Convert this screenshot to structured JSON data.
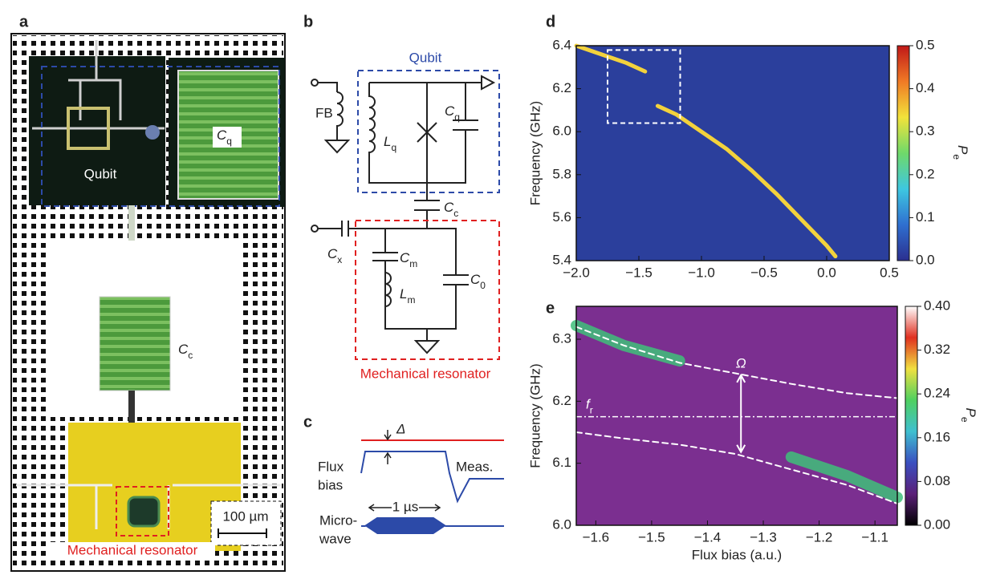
{
  "panels": {
    "a": {
      "label": "a",
      "qubit": "Qubit",
      "cq": {
        "main": "C",
        "sub": "q"
      },
      "cc": {
        "main": "C",
        "sub": "c"
      },
      "scale": "100 µm",
      "resonator": "Mechanical resonator"
    },
    "b": {
      "label": "b",
      "qubit": "Qubit",
      "fb": "FB",
      "lq": {
        "main": "L",
        "sub": "q"
      },
      "cq": {
        "main": "C",
        "sub": "q"
      },
      "cc": {
        "main": "C",
        "sub": "c"
      },
      "cx": {
        "main": "C",
        "sub": "x"
      },
      "cm": {
        "main": "C",
        "sub": "m"
      },
      "lm": {
        "main": "L",
        "sub": "m"
      },
      "c0": {
        "main": "C",
        "sub": "0"
      },
      "resonator": "Mechanical resonator"
    },
    "c": {
      "label": "c",
      "delta": "Δ",
      "flux": "Flux",
      "bias": "bias",
      "meas": "Meas.",
      "micro": "Micro-",
      "wave": "wave",
      "duration": "1 µs"
    }
  },
  "chart_data": [
    {
      "type": "heatmap",
      "label": "d",
      "ylabel": "Frequency (GHz)",
      "background": "#2b3f9c",
      "xlim": [
        -2.0,
        0.5
      ],
      "ylim": [
        5.4,
        6.4
      ],
      "xticks": [
        {
          "value": -2.0,
          "label": "−2.0"
        },
        {
          "value": -1.5,
          "label": "−1.5"
        },
        {
          "value": -1.0,
          "label": "−1.0"
        },
        {
          "value": -0.5,
          "label": "−0.5"
        },
        {
          "value": 0.0,
          "label": "0.0"
        },
        0.5
      ],
      "yticks": [
        5.4,
        5.6,
        5.8,
        {
          "value": 6.0,
          "label": "6.0"
        },
        6.2,
        6.4
      ],
      "x": [
        -2.0,
        -1.8,
        -1.6,
        -1.45,
        -1.4,
        -1.35,
        -1.2,
        -1.0,
        -0.8,
        -0.6,
        -0.4,
        -0.2,
        0.0,
        0.07
      ],
      "series": [
        {
          "color": "#f3d23c",
          "style": "solid",
          "values": [
            6.4,
            6.36,
            6.32,
            6.28,
            null,
            6.12,
            6.08,
            6.0,
            5.92,
            5.82,
            5.71,
            5.59,
            5.47,
            5.42
          ]
        }
      ],
      "highlight": {
        "x": [
          -1.75,
          -1.17
        ],
        "y": [
          6.04,
          6.38
        ]
      },
      "colorbar": {
        "label": {
          "main": "P",
          "sub": "e"
        },
        "lim": [
          0.0,
          0.5
        ],
        "ticks": [
          {
            "value": 0.0,
            "label": "0.0"
          },
          0.1,
          0.2,
          0.3,
          0.4,
          0.5
        ],
        "colors": [
          "#2b2f8f",
          "#2f6fd0",
          "#3ec7e0",
          "#6fd96a",
          "#f2e23a",
          "#f07a25",
          "#c01818"
        ]
      }
    },
    {
      "type": "heatmap",
      "label": "e",
      "ylabel": "Frequency (GHz)",
      "xlabel": "Flux bias (a.u.)",
      "background": "#7b2f90",
      "xlim": [
        -1.635,
        -1.06
      ],
      "ylim": [
        6.0,
        6.353
      ],
      "xticks": [
        {
          "value": -1.6,
          "label": "−1.6"
        },
        {
          "value": -1.5,
          "label": "−1.5"
        },
        {
          "value": -1.4,
          "label": "−1.4"
        },
        {
          "value": -1.3,
          "label": "−1.3"
        },
        {
          "value": -1.2,
          "label": "−1.2"
        },
        {
          "value": -1.1,
          "label": "−1.1"
        }
      ],
      "yticks": [
        {
          "value": 6.0,
          "label": "6.0"
        },
        6.1,
        6.2,
        6.3
      ],
      "x": [
        -1.635,
        -1.55,
        -1.45,
        -1.35,
        -1.25,
        -1.15,
        -1.06
      ],
      "series": [
        {
          "color": "#3fbf7a",
          "style": "band",
          "values": [
            6.322,
            6.29,
            6.265,
            null,
            6.11,
            6.08,
            6.045
          ]
        },
        {
          "color": "#ffffff",
          "style": "dashed",
          "values": [
            6.32,
            6.29,
            6.262,
            6.245,
            6.228,
            6.213,
            6.205
          ]
        },
        {
          "color": "#ffffff",
          "style": "dashed",
          "values": [
            6.15,
            6.14,
            6.13,
            6.115,
            6.09,
            6.065,
            6.035
          ]
        }
      ],
      "fr": {
        "value": 6.175,
        "label": {
          "main": "f",
          "sub": "r"
        }
      },
      "gap": {
        "x": -1.34,
        "y": [
          6.118,
          6.242
        ],
        "label": "Ω"
      },
      "colorbar": {
        "label": {
          "main": "P",
          "sub": "e"
        },
        "lim": [
          0.0,
          0.4
        ],
        "ticks": [
          {
            "value": 0.0,
            "label": "0.00"
          },
          0.08,
          0.16,
          0.24,
          0.32,
          {
            "value": 0.4,
            "label": "0.40"
          }
        ],
        "colors": [
          "#000000",
          "#5b1f78",
          "#3a4fc0",
          "#3fbfd0",
          "#4fd060",
          "#f0e040",
          "#e03020",
          "#ffffff"
        ]
      }
    }
  ]
}
